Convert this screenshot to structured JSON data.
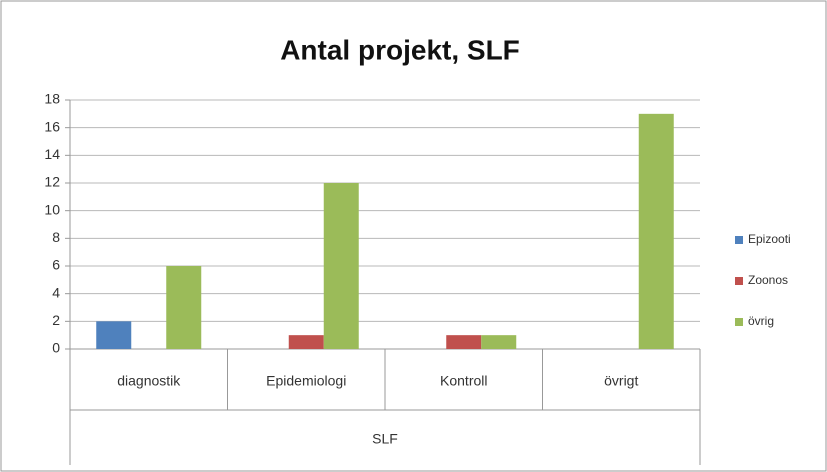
{
  "chart_data": {
    "type": "bar",
    "title": "Antal projekt, SLF",
    "categories": [
      "diagnostik",
      "Epidemiologi",
      "Kontroll",
      "övrigt"
    ],
    "group_label": "SLF",
    "series": [
      {
        "name": "Epizooti",
        "color": "#4f81bd",
        "values": [
          2,
          null,
          null,
          null
        ]
      },
      {
        "name": "Zoonos",
        "color": "#c0504d",
        "values": [
          null,
          1,
          1,
          null
        ]
      },
      {
        "name": "övrig",
        "color": "#9bbb59",
        "values": [
          6,
          12,
          1,
          17
        ]
      }
    ],
    "ylim": [
      0,
      18
    ],
    "yticks": [
      0,
      2,
      4,
      6,
      8,
      10,
      12,
      14,
      16,
      18
    ],
    "grid": true,
    "legend": "right"
  }
}
